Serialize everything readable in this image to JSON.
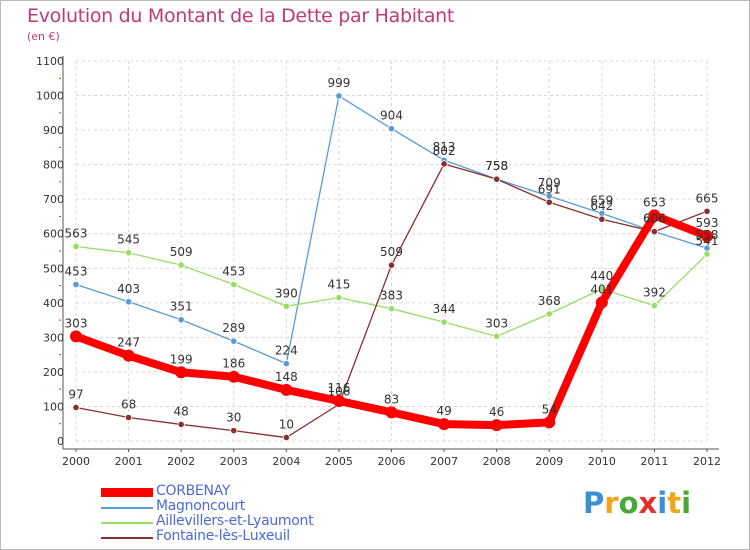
{
  "title": "Evolution du Montant de la Dette par Habitant",
  "subtitle": "(en €)",
  "brand": {
    "letters": [
      "P",
      "r",
      "o",
      "x",
      "i",
      "t",
      "i"
    ],
    "colors": [
      "#3a8fd8",
      "#f0a51c",
      "#4aa83a",
      "#e0322a",
      "#3a8fd8",
      "#f0a51c",
      "#4aa83a"
    ]
  },
  "chart_data": {
    "type": "line",
    "title": "Evolution du Montant de la Dette par Habitant",
    "ylabel": "(en €)",
    "xlabel": "",
    "ylim": [
      0,
      1100
    ],
    "yticks": [
      0,
      100,
      200,
      300,
      400,
      500,
      600,
      700,
      800,
      900,
      1000,
      1100
    ],
    "x": [
      "2000",
      "2001",
      "2002",
      "2003",
      "2004",
      "2005",
      "2006",
      "2007",
      "2008",
      "2009",
      "2010",
      "2011",
      "2012"
    ],
    "grid": true,
    "legend_position": "bottom-left",
    "series": [
      {
        "name": "CORBENAY",
        "color": "#ff0000",
        "values": [
          303,
          247,
          199,
          186,
          148,
          116,
          83,
          49,
          46,
          54,
          401,
          653,
          593
        ],
        "labels": [
          "303",
          "247",
          "199",
          "186",
          "148",
          "116",
          "83",
          "49",
          "46",
          "54",
          "401",
          "653",
          "593"
        ]
      },
      {
        "name": "Magnoncourt",
        "color": "#5a9bd5",
        "values": [
          453,
          403,
          351,
          289,
          224,
          999,
          904,
          813,
          758,
          709,
          659,
          606,
          558
        ],
        "labels": [
          "453",
          "403",
          "351",
          "289",
          "224",
          "999",
          "904",
          "813",
          "758",
          "709",
          "659",
          "606",
          "558"
        ]
      },
      {
        "name": "Aillevillers-et-Lyaumont",
        "color": "#99dd66",
        "values": [
          563,
          545,
          509,
          453,
          390,
          415,
          383,
          344,
          303,
          368,
          440,
          392,
          541
        ],
        "labels": [
          "563",
          "545",
          "509",
          "453",
          "390",
          "415",
          "383",
          "344",
          "303",
          "368",
          "440",
          "392",
          "541"
        ]
      },
      {
        "name": "Fontaine-lès-Luxeuil",
        "color": "#8b2e2e",
        "values": [
          97,
          68,
          48,
          30,
          10,
          106,
          509,
          802,
          758,
          691,
          642,
          606,
          665
        ],
        "labels": [
          "97",
          "68",
          "48",
          "30",
          "10",
          "106",
          "509",
          "802",
          "758",
          "691",
          "642",
          "606",
          "665"
        ]
      }
    ]
  }
}
